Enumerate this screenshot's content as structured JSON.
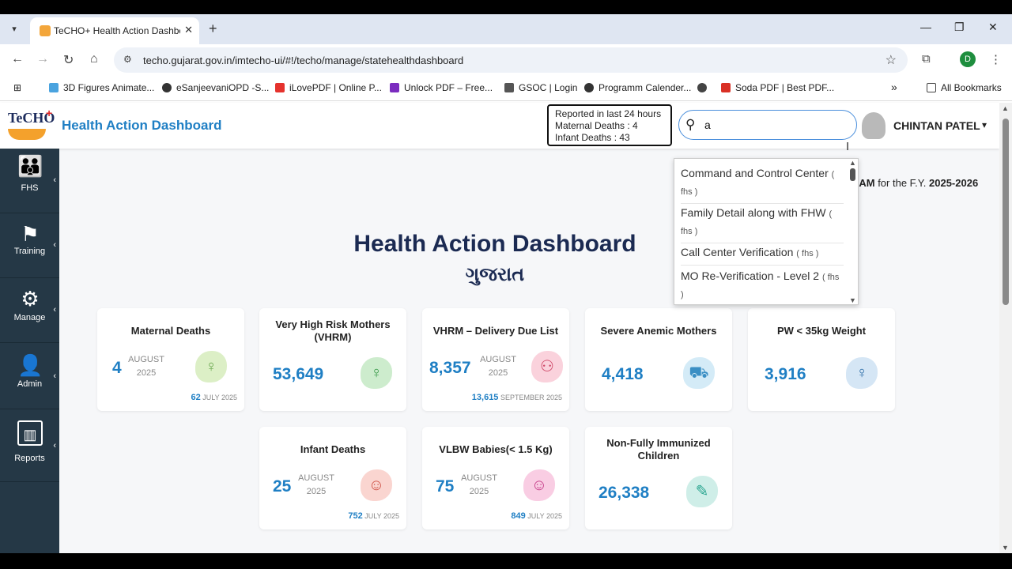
{
  "browser": {
    "tab_title": "TeCHO+ Health Action Dashbo",
    "tab_close": "✕",
    "new_tab": "+",
    "url": "techo.gujarat.gov.in/imtecho-ui/#!/techo/manage/statehealthdashboard",
    "profile_initial": "D",
    "bookmarks": [
      {
        "label": "3D Figures Animate...",
        "color": "#4aa3df"
      },
      {
        "label": "eSanjeevaniOPD -S...",
        "color": "#333333"
      },
      {
        "label": "iLovePDF | Online P...",
        "color": "#e5322d"
      },
      {
        "label": "Unlock PDF – Free...",
        "color": "#7b2cbf"
      },
      {
        "label": "GSOC | Login",
        "color": "#555555"
      },
      {
        "label": "Programm Calender...",
        "color": "#333333"
      },
      {
        "label": "",
        "color": "#444444"
      },
      {
        "label": "Soda PDF | Best PDF...",
        "color": "#d93025"
      }
    ],
    "more_bookmarks": "»",
    "all_bookmarks": "All Bookmarks"
  },
  "header": {
    "logo_text": "TeCHO",
    "title": "Health Action Dashboard",
    "report": {
      "line1": "Reported in last 24 hours",
      "line2": "Maternal Deaths : 4",
      "line3": "Infant Deaths : 43"
    },
    "search": {
      "icon": "search-icon",
      "value": "a"
    },
    "user_name": "CHINTAN PATEL"
  },
  "sidebar": {
    "items": [
      {
        "label": "FHS",
        "icon": "family-icon"
      },
      {
        "label": "Training",
        "icon": "training-icon"
      },
      {
        "label": "Manage",
        "icon": "gears-icon"
      },
      {
        "label": "Admin",
        "icon": "admin-user-icon"
      },
      {
        "label": "Reports",
        "icon": "report-chart-icon"
      }
    ]
  },
  "main": {
    "fy_prefix": "0 AM",
    "fy_middle": " for the F.Y. ",
    "fy_year": "2025-2026",
    "title": "Health Action Dashboard",
    "subtitle": "ગુજરાત"
  },
  "cards": [
    {
      "title": "Maternal Deaths",
      "value": "4",
      "month": "AUGUST",
      "year": "2025",
      "foot_value": "62",
      "foot_label": "JULY 2025",
      "icon": "pregnant-icon",
      "icon_color": "#dcefc6"
    },
    {
      "title": "Very High Risk Mothers (VHRM)",
      "value": "53,649",
      "icon": "mother-icon",
      "icon_color": "#cdeccd"
    },
    {
      "title": "VHRM – Delivery Due List",
      "value": "8,357",
      "month": "AUGUST",
      "year": "2025",
      "foot_value": "13,615",
      "foot_label": "SEPTEMBER 2025",
      "icon": "group-icon",
      "icon_color": "#fad2dc"
    },
    {
      "title": "Severe Anemic Mothers",
      "value": "4,418",
      "icon": "patient-bed-icon",
      "icon_color": "#d4ebf7"
    },
    {
      "title": "PW < 35kg Weight",
      "value": "3,916",
      "icon": "weight-icon",
      "icon_color": "#d5e6f5"
    },
    {
      "title": "Infant Deaths",
      "value": "25",
      "month": "AUGUST",
      "year": "2025",
      "foot_value": "752",
      "foot_label": "JULY 2025",
      "icon": "infant-icon",
      "icon_color": "#fad5d0"
    },
    {
      "title": "VLBW Babies(< 1.5 Kg)",
      "value": "75",
      "month": "AUGUST",
      "year": "2025",
      "foot_value": "849",
      "foot_label": "JULY 2025",
      "icon": "baby-icon",
      "icon_color": "#f9cde3"
    },
    {
      "title": "Non-Fully Immunized Children",
      "value": "26,338",
      "icon": "syringe-icon",
      "icon_color": "#cfeee8"
    }
  ],
  "dropdown": {
    "items": [
      {
        "label": "Command and Control Center",
        "sub": "( fhs )"
      },
      {
        "label": "Family Detail along with FHW",
        "sub": "( fhs )"
      },
      {
        "label": "Call Center Verification",
        "sub": "( fhs )"
      },
      {
        "label": "MO Re-Verification - Level 2",
        "sub": "( fhs )"
      }
    ]
  }
}
